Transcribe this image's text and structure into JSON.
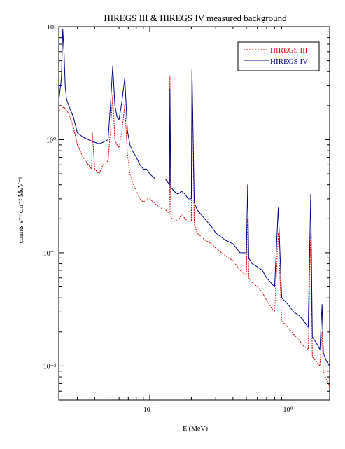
{
  "chart_data": {
    "type": "line",
    "title": "HIREGS III & HIREGS IV measured background",
    "xlabel": "E (MeV)",
    "ylabel": "counts s⁻¹ cm⁻² MeV⁻¹",
    "x_scale": "log",
    "y_scale": "log",
    "xlim": [
      0.022,
      2.0
    ],
    "ylim": [
      0.005,
      10
    ],
    "x_major_ticks": [
      0.1,
      1
    ],
    "x_tick_labels": [
      "10⁻¹",
      "10⁰"
    ],
    "y_major_ticks": [
      0.01,
      0.1,
      1,
      10
    ],
    "y_tick_labels": [
      "10⁻²",
      "10⁻¹",
      "10⁰",
      "10¹"
    ],
    "grid": false,
    "legend_position": "top-right",
    "series": [
      {
        "name": "HIREGS III",
        "color": "#e00000",
        "style": "dotted",
        "x": [
          0.022,
          0.024,
          0.026,
          0.028,
          0.03,
          0.033,
          0.036,
          0.038,
          0.0385,
          0.04,
          0.043,
          0.046,
          0.05,
          0.052,
          0.054,
          0.056,
          0.058,
          0.06,
          0.063,
          0.066,
          0.069,
          0.072,
          0.075,
          0.08,
          0.085,
          0.09,
          0.095,
          0.1,
          0.11,
          0.12,
          0.13,
          0.139,
          0.14,
          0.142,
          0.145,
          0.15,
          0.16,
          0.17,
          0.18,
          0.19,
          0.2,
          0.202,
          0.21,
          0.22,
          0.25,
          0.28,
          0.3,
          0.35,
          0.4,
          0.45,
          0.48,
          0.5,
          0.511,
          0.52,
          0.55,
          0.6,
          0.65,
          0.7,
          0.8,
          0.85,
          0.9,
          1.0,
          1.1,
          1.2,
          1.3,
          1.4,
          1.46,
          1.5,
          1.6,
          1.7,
          1.764,
          1.8,
          1.9,
          2.0
        ],
        "y": [
          1.8,
          1.95,
          1.7,
          1.3,
          0.9,
          0.7,
          0.6,
          0.55,
          1.15,
          0.55,
          0.5,
          0.6,
          0.65,
          1.2,
          2.5,
          1.0,
          0.9,
          0.85,
          1.2,
          2.0,
          0.75,
          0.5,
          0.42,
          0.35,
          0.3,
          0.28,
          0.3,
          0.3,
          0.27,
          0.25,
          0.24,
          0.22,
          3.6,
          0.21,
          0.2,
          0.2,
          0.19,
          0.22,
          0.2,
          0.19,
          0.19,
          4.0,
          0.18,
          0.15,
          0.13,
          0.12,
          0.11,
          0.095,
          0.085,
          0.07,
          0.065,
          0.065,
          0.2,
          0.06,
          0.055,
          0.05,
          0.045,
          0.038,
          0.03,
          0.15,
          0.025,
          0.022,
          0.019,
          0.017,
          0.015,
          0.014,
          0.15,
          0.012,
          0.011,
          0.01,
          0.02,
          0.009,
          0.0075,
          0.0065
        ]
      },
      {
        "name": "HIREGS IV",
        "color": "#00008b",
        "style": "solid",
        "x": [
          0.022,
          0.023,
          0.0235,
          0.024,
          0.0245,
          0.025,
          0.026,
          0.028,
          0.03,
          0.033,
          0.036,
          0.04,
          0.043,
          0.046,
          0.05,
          0.052,
          0.054,
          0.056,
          0.058,
          0.06,
          0.063,
          0.066,
          0.069,
          0.072,
          0.075,
          0.08,
          0.085,
          0.09,
          0.095,
          0.1,
          0.11,
          0.12,
          0.13,
          0.139,
          0.14,
          0.142,
          0.145,
          0.15,
          0.16,
          0.17,
          0.18,
          0.19,
          0.2,
          0.202,
          0.21,
          0.22,
          0.25,
          0.28,
          0.3,
          0.35,
          0.4,
          0.45,
          0.48,
          0.5,
          0.511,
          0.52,
          0.55,
          0.6,
          0.65,
          0.7,
          0.8,
          0.85,
          0.9,
          1.0,
          1.1,
          1.2,
          1.3,
          1.4,
          1.46,
          1.5,
          1.6,
          1.7,
          1.764,
          1.8,
          1.9,
          2.0
        ],
        "y": [
          2.2,
          3.5,
          9.5,
          6.0,
          3.0,
          2.3,
          2.0,
          1.6,
          1.15,
          1.05,
          1.0,
          0.95,
          0.92,
          0.95,
          1.0,
          2.0,
          4.5,
          2.0,
          1.6,
          1.5,
          2.2,
          3.5,
          1.2,
          0.9,
          0.8,
          0.7,
          0.6,
          0.55,
          0.55,
          0.5,
          0.45,
          0.45,
          0.45,
          0.4,
          2.8,
          0.38,
          0.37,
          0.35,
          0.33,
          0.35,
          0.33,
          0.3,
          0.3,
          4.2,
          0.28,
          0.24,
          0.2,
          0.17,
          0.15,
          0.13,
          0.12,
          0.1,
          0.1,
          0.1,
          0.4,
          0.09,
          0.08,
          0.075,
          0.07,
          0.06,
          0.05,
          0.25,
          0.04,
          0.035,
          0.03,
          0.028,
          0.025,
          0.022,
          0.33,
          0.018,
          0.016,
          0.014,
          0.035,
          0.013,
          0.011,
          0.01
        ]
      }
    ]
  }
}
